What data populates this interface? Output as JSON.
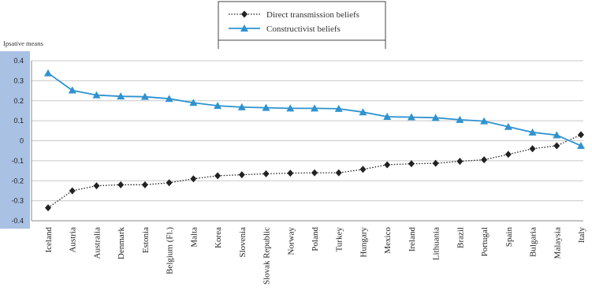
{
  "chart_data": {
    "type": "line",
    "ylabel": "Ipsative means",
    "ylim": [
      -0.4,
      0.4
    ],
    "yticks": [
      "0.4",
      "0.3",
      "0.2",
      "0.1",
      "0",
      "-0.1",
      "-0.2",
      "-0.3",
      "-0.4"
    ],
    "grid": true,
    "legend_position": "top-center",
    "categories": [
      "Iceland",
      "Austria",
      "Australia",
      "Denmark",
      "Estonia",
      "Belgium (Fl.)",
      "Malta",
      "Korea",
      "Slovenia",
      "Slovak Republic",
      "Norway",
      "Poland",
      "Turkey",
      "Hungary",
      "Mexico",
      "Ireland",
      "Lithuania",
      "Brazil",
      "Portugal",
      "Spain",
      "Bulgaria",
      "Malaysia",
      "Italy"
    ],
    "series": [
      {
        "name": "Direct transmission beliefs",
        "color": "#222222",
        "marker": "diamond",
        "line_style": "dotted",
        "values": [
          -0.335,
          -0.25,
          -0.225,
          -0.22,
          -0.22,
          -0.21,
          -0.19,
          -0.175,
          -0.17,
          -0.165,
          -0.162,
          -0.16,
          -0.16,
          -0.143,
          -0.12,
          -0.115,
          -0.113,
          -0.103,
          -0.095,
          -0.068,
          -0.04,
          -0.025,
          0.03
        ]
      },
      {
        "name": "Constructivist beliefs",
        "color": "#2e93cf",
        "marker": "triangle",
        "line_style": "solid",
        "values": [
          0.338,
          0.252,
          0.228,
          0.222,
          0.22,
          0.21,
          0.19,
          0.175,
          0.168,
          0.165,
          0.162,
          0.162,
          0.16,
          0.143,
          0.12,
          0.118,
          0.115,
          0.105,
          0.098,
          0.07,
          0.042,
          0.028,
          -0.025
        ]
      }
    ]
  }
}
